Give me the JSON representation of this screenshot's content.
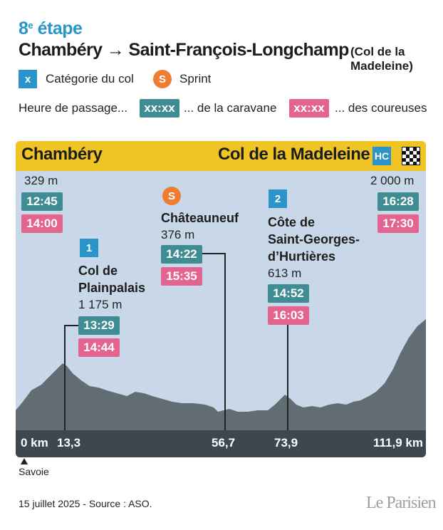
{
  "stage": {
    "number": "8",
    "suffix": "e",
    "label": "étape"
  },
  "route": {
    "title": "Chambéry → Saint-François-Longchamp",
    "note": "(Col de la Madeleine)"
  },
  "legend": {
    "category_badge": "x",
    "category_label": "Catégorie du col",
    "sprint_badge": "S",
    "sprint_label": "Sprint",
    "time_label": "Heure de passage...",
    "caravan_sample": "xx:xx",
    "caravan_label": "... de la caravane",
    "riders_sample": "xx:xx",
    "riders_label": "... des coureuses"
  },
  "colors": {
    "teal": "#3f8d92",
    "pink": "#e3648e",
    "blue": "#2b94c9",
    "orange": "#ee7d32",
    "yellow": "#efc525",
    "profile": "#616c73"
  },
  "header": {
    "start": "Chambéry",
    "finish": "Col de la Madeleine",
    "finish_category": "HC",
    "finish_icon": "checkered-flag-icon"
  },
  "points": {
    "start": {
      "altitude": "329 m",
      "caravan": "12:45",
      "riders": "14:00",
      "km": "0 km"
    },
    "plainpalais": {
      "category": "1",
      "name_1": "Col de",
      "name_2": "Plainpalais",
      "altitude": "1 175 m",
      "caravan": "13:29",
      "riders": "14:44",
      "km": "13,3"
    },
    "chateauneuf": {
      "badge": "S",
      "name": "Châteauneuf",
      "altitude": "376 m",
      "caravan": "14:22",
      "riders": "15:35",
      "km": "56,7"
    },
    "hurtieres": {
      "category": "2",
      "name_1": "Côte de",
      "name_2": "Saint-Georges-",
      "name_3": "d’Hurtières",
      "altitude": "613 m",
      "caravan": "14:52",
      "riders": "16:03",
      "km": "73,9"
    },
    "finish": {
      "altitude": "2 000 m",
      "caravan": "16:28",
      "riders": "17:30",
      "km": "111,9 km"
    }
  },
  "region": "Savoie",
  "footer": {
    "source": "15 juillet 2025 - Source : ASO.",
    "logo": "Le Parisien"
  }
}
